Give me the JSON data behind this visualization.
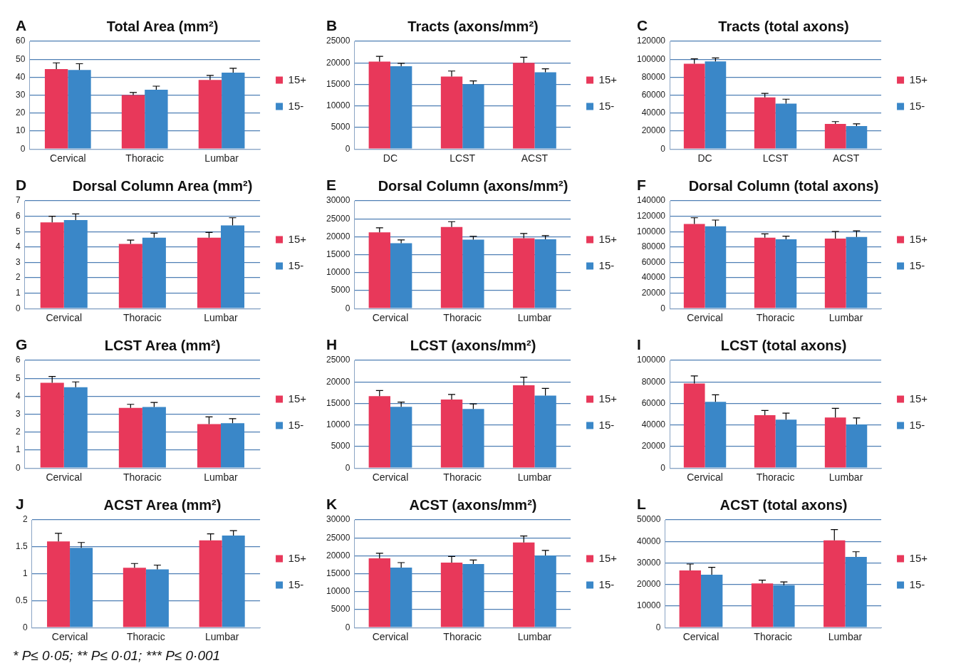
{
  "chart_data": [
    {
      "type": "bar",
      "title": "Total Area (mm²)",
      "annotations": [
        "A"
      ],
      "categories": [
        "Cervical",
        "Thoracic",
        "Lumbar"
      ],
      "ylim": [
        0,
        60
      ],
      "yticks": [
        0,
        10,
        20,
        30,
        40,
        50,
        60
      ],
      "grid": "y",
      "legend": "right",
      "series": [
        {
          "name": "15+",
          "color": "#e8385a",
          "values": [
            44.5,
            30,
            38.5
          ],
          "errors": [
            [
              44.5,
              48
            ],
            [
              30,
              31.5
            ],
            [
              38.5,
              41
            ]
          ]
        },
        {
          "name": "15-",
          "color": "#3a87c8",
          "values": [
            44,
            33,
            42.5
          ],
          "errors": [
            [
              44,
              47.5
            ],
            [
              33,
              35
            ],
            [
              42.5,
              45
            ]
          ]
        }
      ]
    },
    {
      "type": "bar",
      "title": "Tracts (axons/mm²)",
      "annotations": [
        "B"
      ],
      "categories": [
        "DC",
        "LCST",
        "ACST"
      ],
      "ylim": [
        0,
        25000
      ],
      "yticks": [
        0,
        5000,
        10000,
        15000,
        20000,
        25000
      ],
      "grid": "y",
      "legend": "right",
      "series": [
        {
          "name": "15+",
          "color": "#e8385a",
          "values": [
            20300,
            16800,
            20000
          ],
          "errors": [
            [
              20300,
              21500
            ],
            [
              16800,
              18100
            ],
            [
              20000,
              21300
            ]
          ]
        },
        {
          "name": "15-",
          "color": "#3a87c8",
          "values": [
            19200,
            15000,
            17800
          ],
          "errors": [
            [
              19200,
              19900
            ],
            [
              15000,
              15800
            ],
            [
              17800,
              18600
            ]
          ]
        }
      ]
    },
    {
      "type": "bar",
      "title": "Tracts (total axons)",
      "annotations": [
        "C"
      ],
      "categories": [
        "DC",
        "LCST",
        "ACST"
      ],
      "ylim": [
        0,
        120000
      ],
      "yticks": [
        0,
        20000,
        40000,
        60000,
        80000,
        100000,
        120000
      ],
      "grid": "y",
      "legend": "right",
      "series": [
        {
          "name": "15+",
          "color": "#e8385a",
          "values": [
            95000,
            57500,
            28000
          ],
          "errors": [
            [
              95000,
              100500
            ],
            [
              57500,
              62000
            ],
            [
              28000,
              30500
            ]
          ]
        },
        {
          "name": "15-",
          "color": "#3a87c8",
          "values": [
            97500,
            50500,
            25500
          ],
          "errors": [
            [
              97500,
              101500
            ],
            [
              50500,
              55500
            ],
            [
              25500,
              28000
            ]
          ]
        }
      ]
    },
    {
      "type": "bar",
      "title": "Dorsal Column Area (mm²)",
      "annotations": [
        "D"
      ],
      "categories": [
        "Cervical",
        "Thoracic",
        "Lumbar"
      ],
      "ylim": [
        0,
        7
      ],
      "yticks": [
        0,
        1,
        2,
        3,
        4,
        5,
        6,
        7
      ],
      "grid": "y",
      "legend": "right",
      "series": [
        {
          "name": "15+",
          "color": "#e8385a",
          "values": [
            5.6,
            4.2,
            4.6
          ],
          "errors": [
            [
              5.6,
              6.0
            ],
            [
              4.2,
              4.45
            ],
            [
              4.6,
              4.95
            ]
          ]
        },
        {
          "name": "15-",
          "color": "#3a87c8",
          "values": [
            5.75,
            4.6,
            5.4
          ],
          "errors": [
            [
              5.75,
              6.15
            ],
            [
              4.6,
              4.9
            ],
            [
              5.4,
              5.9
            ]
          ]
        }
      ]
    },
    {
      "type": "bar",
      "title": "Dorsal Column (axons/mm²)",
      "annotations": [
        "E"
      ],
      "categories": [
        "Cervical",
        "Thoracic",
        "Lumbar"
      ],
      "ylim": [
        0,
        30000
      ],
      "yticks": [
        0,
        5000,
        10000,
        15000,
        20000,
        25000,
        30000
      ],
      "grid": "y",
      "legend": "right",
      "series": [
        {
          "name": "15+",
          "color": "#e8385a",
          "values": [
            21200,
            22700,
            19600
          ],
          "errors": [
            [
              21200,
              22500
            ],
            [
              22700,
              24200
            ],
            [
              19600,
              20900
            ]
          ]
        },
        {
          "name": "15-",
          "color": "#3a87c8",
          "values": [
            18200,
            19200,
            19300
          ],
          "errors": [
            [
              18200,
              19100
            ],
            [
              19200,
              20100
            ],
            [
              19300,
              20300
            ]
          ]
        }
      ]
    },
    {
      "type": "bar",
      "title": "Dorsal Column (total axons)",
      "annotations": [
        "F"
      ],
      "categories": [
        "Cervical",
        "Thoracic",
        "Lumbar"
      ],
      "ylim": [
        0,
        140000
      ],
      "yticks": [
        0,
        20000,
        40000,
        60000,
        80000,
        100000,
        120000,
        140000
      ],
      "grid": "y",
      "legend": "right",
      "series": [
        {
          "name": "15+",
          "color": "#e8385a",
          "values": [
            110000,
            92000,
            91000
          ],
          "errors": [
            [
              110000,
              118000
            ],
            [
              92000,
              97000
            ],
            [
              91000,
              100000
            ]
          ]
        },
        {
          "name": "15-",
          "color": "#3a87c8",
          "values": [
            107000,
            90000,
            93000
          ],
          "errors": [
            [
              107000,
              115000
            ],
            [
              90000,
              94000
            ],
            [
              93000,
              101000
            ]
          ]
        }
      ]
    },
    {
      "type": "bar",
      "title": "LCST Area (mm²)",
      "annotations": [
        "G"
      ],
      "categories": [
        "Cervical",
        "Thoracic",
        "Lumbar"
      ],
      "ylim": [
        0,
        6
      ],
      "yticks": [
        0,
        1,
        2,
        3,
        4,
        5,
        6
      ],
      "grid": "y",
      "legend": "right",
      "series": [
        {
          "name": "15+",
          "color": "#e8385a",
          "values": [
            4.75,
            3.35,
            2.45
          ],
          "errors": [
            [
              4.75,
              5.1
            ],
            [
              3.35,
              3.55
            ],
            [
              2.45,
              2.85
            ]
          ]
        },
        {
          "name": "15-",
          "color": "#3a87c8",
          "values": [
            4.5,
            3.4,
            2.5
          ],
          "errors": [
            [
              4.5,
              4.8
            ],
            [
              3.4,
              3.65
            ],
            [
              2.5,
              2.75
            ]
          ]
        }
      ]
    },
    {
      "type": "bar",
      "title": "LCST (axons/mm²)",
      "annotations": [
        "H"
      ],
      "categories": [
        "Cervical",
        "Thoracic",
        "Lumbar"
      ],
      "ylim": [
        0,
        25000
      ],
      "yticks": [
        0,
        5000,
        10000,
        15000,
        20000,
        25000
      ],
      "grid": "y",
      "legend": "right",
      "series": [
        {
          "name": "15+",
          "color": "#e8385a",
          "values": [
            16700,
            15900,
            19200
          ],
          "errors": [
            [
              16700,
              18000
            ],
            [
              15900,
              17100
            ],
            [
              19200,
              21100
            ]
          ]
        },
        {
          "name": "15-",
          "color": "#3a87c8",
          "values": [
            14200,
            13700,
            16800
          ],
          "errors": [
            [
              14200,
              15300
            ],
            [
              13700,
              14900
            ],
            [
              16800,
              18500
            ]
          ]
        }
      ]
    },
    {
      "type": "bar",
      "title": "LCST (total axons)",
      "annotations": [
        "I"
      ],
      "categories": [
        "Cervical",
        "Thoracic",
        "Lumbar"
      ],
      "ylim": [
        0,
        100000
      ],
      "yticks": [
        0,
        20000,
        40000,
        60000,
        80000,
        100000
      ],
      "grid": "y",
      "legend": "right",
      "series": [
        {
          "name": "15+",
          "color": "#e8385a",
          "values": [
            78500,
            49000,
            47000
          ],
          "errors": [
            [
              78500,
              85500
            ],
            [
              49000,
              53500
            ],
            [
              47000,
              55500
            ]
          ]
        },
        {
          "name": "15-",
          "color": "#3a87c8",
          "values": [
            61500,
            45000,
            40500
          ],
          "errors": [
            [
              61500,
              68000
            ],
            [
              45000,
              51000
            ],
            [
              40500,
              46500
            ]
          ]
        }
      ]
    },
    {
      "type": "bar",
      "title": "ACST Area (mm²)",
      "annotations": [
        "J",
        "* P≤ 0·05; ** P≤ 0·01; *** P≤ 0·001"
      ],
      "categories": [
        "Cervical",
        "Thoracic",
        "Lumbar"
      ],
      "ylim": [
        0,
        2
      ],
      "yticks": [
        0,
        0.5,
        1,
        1.5,
        2
      ],
      "grid": "y",
      "legend": "right",
      "series": [
        {
          "name": "15+",
          "color": "#e8385a",
          "values": [
            1.6,
            1.11,
            1.62
          ],
          "errors": [
            [
              1.6,
              1.75
            ],
            [
              1.11,
              1.19
            ],
            [
              1.62,
              1.74
            ]
          ]
        },
        {
          "name": "15-",
          "color": "#3a87c8",
          "values": [
            1.48,
            1.08,
            1.71
          ],
          "errors": [
            [
              1.48,
              1.58
            ],
            [
              1.08,
              1.16
            ],
            [
              1.71,
              1.8
            ]
          ]
        }
      ]
    },
    {
      "type": "bar",
      "title": "ACST (axons/mm²)",
      "annotations": [
        "K"
      ],
      "categories": [
        "Cervical",
        "Thoracic",
        "Lumbar"
      ],
      "ylim": [
        0,
        30000
      ],
      "yticks": [
        0,
        5000,
        10000,
        15000,
        20000,
        25000,
        30000
      ],
      "grid": "y",
      "legend": "right",
      "series": [
        {
          "name": "15+",
          "color": "#e8385a",
          "values": [
            19300,
            18100,
            23700
          ],
          "errors": [
            [
              19300,
              20700
            ],
            [
              18100,
              19800
            ],
            [
              23700,
              25500
            ]
          ]
        },
        {
          "name": "15-",
          "color": "#3a87c8",
          "values": [
            16700,
            17700,
            20100
          ],
          "errors": [
            [
              16700,
              18100
            ],
            [
              17700,
              18800
            ],
            [
              20100,
              21500
            ]
          ]
        }
      ]
    },
    {
      "type": "bar",
      "title": "ACST (total axons)",
      "annotations": [
        "L"
      ],
      "categories": [
        "Cervical",
        "Thoracic",
        "Lumbar"
      ],
      "ylim": [
        0,
        50000
      ],
      "yticks": [
        0,
        10000,
        20000,
        30000,
        40000,
        50000
      ],
      "grid": "y",
      "legend": "right",
      "series": [
        {
          "name": "15+",
          "color": "#e8385a",
          "values": [
            26500,
            20500,
            40500
          ],
          "errors": [
            [
              26500,
              29500
            ],
            [
              20500,
              22000
            ],
            [
              40500,
              45500
            ]
          ]
        },
        {
          "name": "15-",
          "color": "#3a87c8",
          "values": [
            24500,
            19700,
            32800
          ],
          "errors": [
            [
              24500,
              28000
            ],
            [
              19700,
              21200
            ],
            [
              32800,
              35200
            ]
          ]
        }
      ]
    }
  ]
}
